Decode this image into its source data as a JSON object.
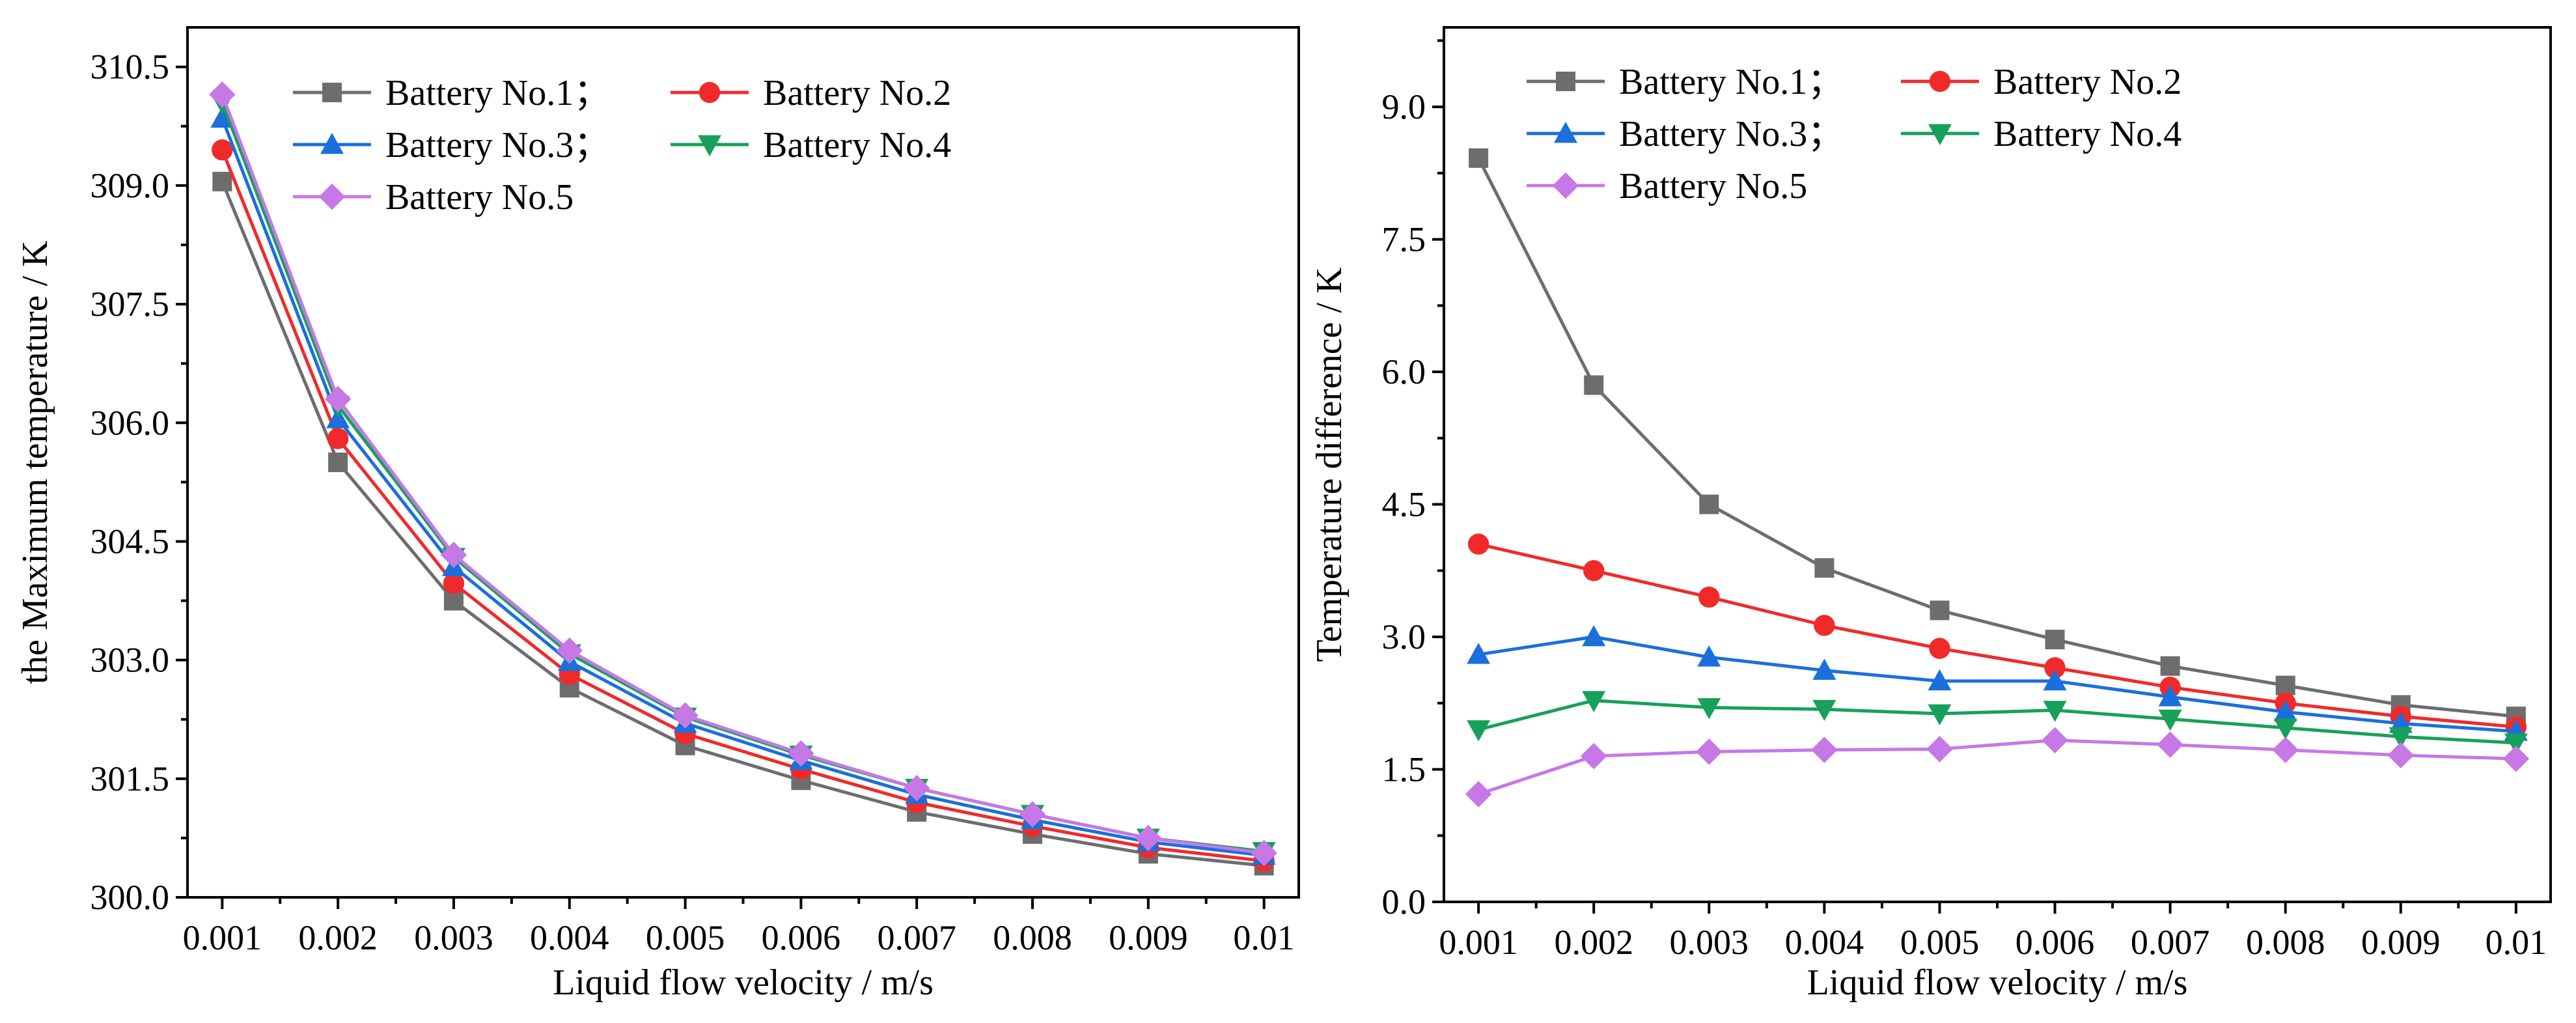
{
  "chart_data": [
    {
      "type": "line",
      "id": "left",
      "xlabel": "Liquid flow velocity / m/s",
      "ylabel": "the Maximum temperature / K",
      "xlim": [
        0.0007,
        0.0103
      ],
      "ylim": [
        300.0,
        311.0
      ],
      "x": [
        0.001,
        0.002,
        0.003,
        0.004,
        0.005,
        0.006,
        0.007,
        0.008,
        0.009,
        0.01
      ],
      "xtick_labels": [
        "0.001",
        "0.002",
        "0.003",
        "0.004",
        "0.005",
        "0.006",
        "0.007",
        "0.008",
        "0.009",
        "0.01"
      ],
      "yticks": [
        300.0,
        301.5,
        303.0,
        304.5,
        306.0,
        307.5,
        309.0,
        310.5
      ],
      "ytick_labels": [
        "300.0",
        "301.5",
        "303.0",
        "304.5",
        "306.0",
        "307.5",
        "309.0",
        "310.5"
      ],
      "legend_position": "top-left",
      "series": [
        {
          "name": "Battery No.1；",
          "color": "#6d6d6d",
          "marker": "square",
          "values": [
            309.05,
            305.5,
            303.75,
            302.65,
            301.92,
            301.48,
            301.08,
            300.8,
            300.55,
            300.4
          ]
        },
        {
          "name": "Battery No.2",
          "color": "#f02a2a",
          "marker": "circle",
          "values": [
            309.45,
            305.8,
            303.97,
            302.82,
            302.07,
            301.62,
            301.2,
            300.9,
            300.63,
            300.46
          ]
        },
        {
          "name": "Battery No.3；",
          "color": "#1a6fdc",
          "marker": "triangle-up",
          "values": [
            309.85,
            306.05,
            304.18,
            302.98,
            302.2,
            301.73,
            301.3,
            300.98,
            300.7,
            300.53
          ]
        },
        {
          "name": "Battery No.4",
          "color": "#17a05a",
          "marker": "triangle-down",
          "values": [
            310.05,
            306.22,
            304.3,
            303.08,
            302.28,
            301.8,
            301.38,
            301.05,
            300.75,
            300.58
          ]
        },
        {
          "name": "Battery No.5",
          "color": "#c678e6",
          "marker": "diamond",
          "values": [
            310.15,
            306.3,
            304.33,
            303.12,
            302.3,
            301.82,
            301.38,
            301.05,
            300.75,
            300.56
          ]
        }
      ]
    },
    {
      "type": "line",
      "id": "right",
      "xlabel": "Liquid flow velocity / m/s",
      "ylabel": "Temperature difference / K",
      "xlim": [
        0.0007,
        0.0103
      ],
      "ylim": [
        0.0,
        9.9
      ],
      "x": [
        0.001,
        0.002,
        0.003,
        0.004,
        0.005,
        0.006,
        0.007,
        0.008,
        0.009,
        0.01
      ],
      "xtick_labels": [
        "0.001",
        "0.002",
        "0.003",
        "0.004",
        "0.005",
        "0.006",
        "0.007",
        "0.008",
        "0.009",
        "0.01"
      ],
      "yticks": [
        0.0,
        1.5,
        3.0,
        4.5,
        6.0,
        7.5,
        9.0
      ],
      "ytick_labels": [
        "0.0",
        "1.5",
        "3.0",
        "4.5",
        "6.0",
        "7.5",
        "9.0"
      ],
      "legend_position": "top-left",
      "series": [
        {
          "name": "Battery No.1；",
          "color": "#6d6d6d",
          "marker": "square",
          "values": [
            8.42,
            5.85,
            4.5,
            3.78,
            3.3,
            2.97,
            2.67,
            2.45,
            2.23,
            2.1
          ]
        },
        {
          "name": "Battery No.2",
          "color": "#f02a2a",
          "marker": "circle",
          "values": [
            4.05,
            3.75,
            3.45,
            3.13,
            2.87,
            2.65,
            2.43,
            2.25,
            2.1,
            1.98
          ]
        },
        {
          "name": "Battery No.3；",
          "color": "#1a6fdc",
          "marker": "triangle-up",
          "values": [
            2.8,
            3.0,
            2.77,
            2.62,
            2.5,
            2.5,
            2.32,
            2.15,
            2.02,
            1.93
          ]
        },
        {
          "name": "Battery No.4",
          "color": "#17a05a",
          "marker": "triangle-down",
          "values": [
            1.95,
            2.28,
            2.2,
            2.18,
            2.13,
            2.17,
            2.07,
            1.97,
            1.87,
            1.8
          ]
        },
        {
          "name": "Battery No.5",
          "color": "#c678e6",
          "marker": "diamond",
          "values": [
            1.22,
            1.65,
            1.7,
            1.72,
            1.73,
            1.83,
            1.78,
            1.72,
            1.66,
            1.62
          ]
        }
      ]
    }
  ]
}
